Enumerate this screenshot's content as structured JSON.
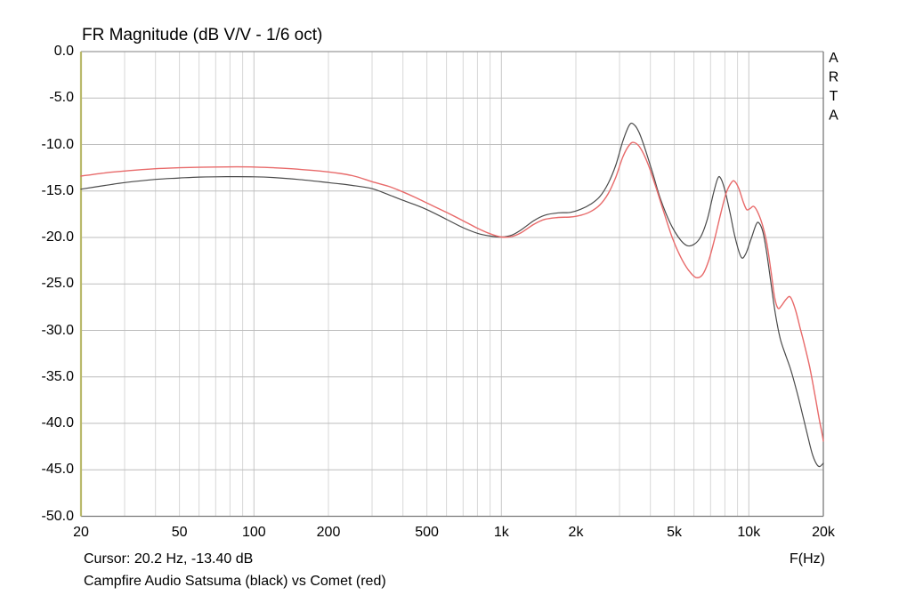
{
  "title": "FR Magnitude (dB V/V - 1/6 oct)",
  "watermark": "ARTA",
  "cursor_readout": "Cursor: 20.2 Hz, -13.40 dB",
  "x_axis_unit": "F(Hz)",
  "caption": "Campfire Audio Satsuma (black) vs Comet (red)",
  "chart_data": {
    "type": "line",
    "title": "FR Magnitude (dB V/V - 1/6 oct)",
    "xlabel": "F(Hz)",
    "ylabel": "dB V/V",
    "x_scale": "log",
    "x_range": [
      20,
      20000
    ],
    "y_range": [
      -50,
      0
    ],
    "grid": true,
    "legend_position": "none",
    "x_ticks": [
      {
        "f": 20,
        "label": "20"
      },
      {
        "f": 50,
        "label": "50"
      },
      {
        "f": 100,
        "label": "100"
      },
      {
        "f": 200,
        "label": "200"
      },
      {
        "f": 500,
        "label": "500"
      },
      {
        "f": 1000,
        "label": "1k"
      },
      {
        "f": 2000,
        "label": "2k"
      },
      {
        "f": 5000,
        "label": "5k"
      },
      {
        "f": 10000,
        "label": "10k"
      },
      {
        "f": 20000,
        "label": "20k"
      }
    ],
    "y_ticks": [
      {
        "v": 0,
        "label": "0.0"
      },
      {
        "v": -5,
        "label": "-5.0"
      },
      {
        "v": -10,
        "label": "-10.0"
      },
      {
        "v": -15,
        "label": "-15.0"
      },
      {
        "v": -20,
        "label": "-20.0"
      },
      {
        "v": -25,
        "label": "-25.0"
      },
      {
        "v": -30,
        "label": "-30.0"
      },
      {
        "v": -35,
        "label": "-35.0"
      },
      {
        "v": -40,
        "label": "-40.0"
      },
      {
        "v": -45,
        "label": "-45.0"
      },
      {
        "v": -50,
        "label": "-50.0"
      }
    ],
    "x_gridlines": [
      30,
      40,
      50,
      60,
      70,
      80,
      90,
      100,
      200,
      300,
      400,
      500,
      600,
      700,
      800,
      900,
      1000,
      2000,
      3000,
      4000,
      5000,
      6000,
      7000,
      8000,
      9000,
      10000
    ],
    "y_gridlines": [
      -5,
      -10,
      -15,
      -20,
      -25,
      -30,
      -35,
      -40,
      -45
    ],
    "style": {
      "background": "#ffffff",
      "grid_v": "#d7d7d7",
      "grid_v_major": "#c6c6c6",
      "grid_h": "#bdbdbd",
      "border_top": "#9a9a9a",
      "border_right": "#6e6e6e",
      "border_bottom": "#7a7a7a",
      "border_left": "#b9b96b"
    },
    "series": [
      {
        "name": "Campfire Audio Satsuma",
        "color": "#4a4a4a",
        "width": 1.2,
        "points": [
          [
            20,
            -14.8
          ],
          [
            25,
            -14.4
          ],
          [
            30,
            -14.1
          ],
          [
            40,
            -13.75
          ],
          [
            50,
            -13.6
          ],
          [
            60,
            -13.5
          ],
          [
            70,
            -13.47
          ],
          [
            85,
            -13.45
          ],
          [
            100,
            -13.47
          ],
          [
            120,
            -13.55
          ],
          [
            150,
            -13.75
          ],
          [
            200,
            -14.1
          ],
          [
            250,
            -14.4
          ],
          [
            300,
            -14.75
          ],
          [
            350,
            -15.4
          ],
          [
            400,
            -16.0
          ],
          [
            450,
            -16.5
          ],
          [
            500,
            -17.0
          ],
          [
            600,
            -18.05
          ],
          [
            700,
            -18.95
          ],
          [
            800,
            -19.55
          ],
          [
            900,
            -19.85
          ],
          [
            1000,
            -19.95
          ],
          [
            1100,
            -19.75
          ],
          [
            1200,
            -19.2
          ],
          [
            1350,
            -18.2
          ],
          [
            1500,
            -17.6
          ],
          [
            1700,
            -17.35
          ],
          [
            1900,
            -17.3
          ],
          [
            2100,
            -16.95
          ],
          [
            2300,
            -16.4
          ],
          [
            2500,
            -15.6
          ],
          [
            2700,
            -14.2
          ],
          [
            2900,
            -12.2
          ],
          [
            3100,
            -9.6
          ],
          [
            3300,
            -7.85
          ],
          [
            3450,
            -7.9
          ],
          [
            3600,
            -8.7
          ],
          [
            3800,
            -10.4
          ],
          [
            4100,
            -13.2
          ],
          [
            4400,
            -15.9
          ],
          [
            4800,
            -18.4
          ],
          [
            5200,
            -20.0
          ],
          [
            5600,
            -20.85
          ],
          [
            6000,
            -20.75
          ],
          [
            6400,
            -19.9
          ],
          [
            6800,
            -18.0
          ],
          [
            7200,
            -15.2
          ],
          [
            7500,
            -13.6
          ],
          [
            7700,
            -13.65
          ],
          [
            8000,
            -14.9
          ],
          [
            8400,
            -17.4
          ],
          [
            8800,
            -20.0
          ],
          [
            9300,
            -22.1
          ],
          [
            9700,
            -21.8
          ],
          [
            10200,
            -20.2
          ],
          [
            10700,
            -18.6
          ],
          [
            11000,
            -18.45
          ],
          [
            11400,
            -19.4
          ],
          [
            11800,
            -21.6
          ],
          [
            12300,
            -25.0
          ],
          [
            12800,
            -28.2
          ],
          [
            13400,
            -30.9
          ],
          [
            14100,
            -32.7
          ],
          [
            14800,
            -34.3
          ],
          [
            15600,
            -36.5
          ],
          [
            16400,
            -38.8
          ],
          [
            17200,
            -41.1
          ],
          [
            18000,
            -43.2
          ],
          [
            18700,
            -44.3
          ],
          [
            19300,
            -44.65
          ],
          [
            20000,
            -44.3
          ]
        ]
      },
      {
        "name": "Campfire Audio Comet",
        "color": "#e86a6a",
        "width": 1.4,
        "points": [
          [
            20,
            -13.4
          ],
          [
            25,
            -13.05
          ],
          [
            30,
            -12.85
          ],
          [
            40,
            -12.6
          ],
          [
            50,
            -12.5
          ],
          [
            60,
            -12.45
          ],
          [
            70,
            -12.42
          ],
          [
            85,
            -12.4
          ],
          [
            100,
            -12.42
          ],
          [
            120,
            -12.5
          ],
          [
            150,
            -12.65
          ],
          [
            200,
            -12.95
          ],
          [
            250,
            -13.35
          ],
          [
            300,
            -14.0
          ],
          [
            350,
            -14.5
          ],
          [
            400,
            -15.1
          ],
          [
            450,
            -15.7
          ],
          [
            500,
            -16.3
          ],
          [
            600,
            -17.3
          ],
          [
            700,
            -18.2
          ],
          [
            800,
            -19.0
          ],
          [
            900,
            -19.6
          ],
          [
            1000,
            -19.95
          ],
          [
            1100,
            -19.9
          ],
          [
            1200,
            -19.5
          ],
          [
            1350,
            -18.6
          ],
          [
            1500,
            -18.05
          ],
          [
            1700,
            -17.85
          ],
          [
            1900,
            -17.8
          ],
          [
            2100,
            -17.6
          ],
          [
            2300,
            -17.2
          ],
          [
            2500,
            -16.5
          ],
          [
            2700,
            -15.3
          ],
          [
            2900,
            -13.5
          ],
          [
            3100,
            -11.3
          ],
          [
            3300,
            -10.0
          ],
          [
            3450,
            -9.8
          ],
          [
            3650,
            -10.4
          ],
          [
            3900,
            -12.0
          ],
          [
            4200,
            -14.5
          ],
          [
            4500,
            -17.0
          ],
          [
            4900,
            -20.0
          ],
          [
            5300,
            -22.1
          ],
          [
            5700,
            -23.5
          ],
          [
            6100,
            -24.3
          ],
          [
            6500,
            -24.0
          ],
          [
            6900,
            -22.4
          ],
          [
            7300,
            -20.0
          ],
          [
            7700,
            -17.4
          ],
          [
            8100,
            -15.2
          ],
          [
            8500,
            -14.1
          ],
          [
            8750,
            -13.95
          ],
          [
            9100,
            -14.7
          ],
          [
            9500,
            -16.2
          ],
          [
            9800,
            -17.0
          ],
          [
            10100,
            -16.9
          ],
          [
            10450,
            -16.65
          ],
          [
            10800,
            -17.15
          ],
          [
            11300,
            -18.5
          ],
          [
            11800,
            -20.5
          ],
          [
            12300,
            -23.7
          ],
          [
            12700,
            -26.4
          ],
          [
            13100,
            -27.6
          ],
          [
            13500,
            -27.4
          ],
          [
            14100,
            -26.7
          ],
          [
            14700,
            -26.4
          ],
          [
            15400,
            -27.7
          ],
          [
            16100,
            -29.7
          ],
          [
            16800,
            -31.6
          ],
          [
            17600,
            -33.9
          ],
          [
            18400,
            -36.6
          ],
          [
            19200,
            -39.4
          ],
          [
            19700,
            -40.9
          ],
          [
            20000,
            -41.9
          ]
        ]
      }
    ]
  }
}
